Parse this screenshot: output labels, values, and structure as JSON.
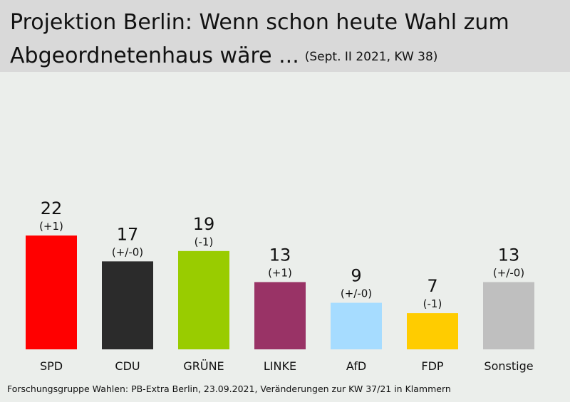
{
  "title": {
    "line1": "Projektion Berlin: Wenn schon heute Wahl zum",
    "line2": "Abgeordnetenhaus wäre ...",
    "subtitle": "(Sept. II 2021, KW 38)"
  },
  "chart_data": {
    "type": "bar",
    "categories": [
      "SPD",
      "CDU",
      "GRÜNE",
      "LINKE",
      "AfD",
      "FDP",
      "Sonstige"
    ],
    "values": [
      22,
      17,
      19,
      13,
      9,
      7,
      13
    ],
    "changes": [
      "(+1)",
      "(+/-0)",
      "(-1)",
      "(+1)",
      "(+/-0)",
      "(-1)",
      "(+/-0)"
    ],
    "colors": [
      "#ff0000",
      "#2b2b2b",
      "#99cc00",
      "#993366",
      "#a6dcff",
      "#ffcc00",
      "#bfbfbf"
    ],
    "ylim": [
      0,
      22
    ],
    "grid": false,
    "xlabel": "",
    "ylabel": ""
  },
  "footer": "Forschungsgruppe Wahlen: PB-Extra Berlin, 23.09.2021, Veränderungen zur KW 37/21 in Klammern"
}
